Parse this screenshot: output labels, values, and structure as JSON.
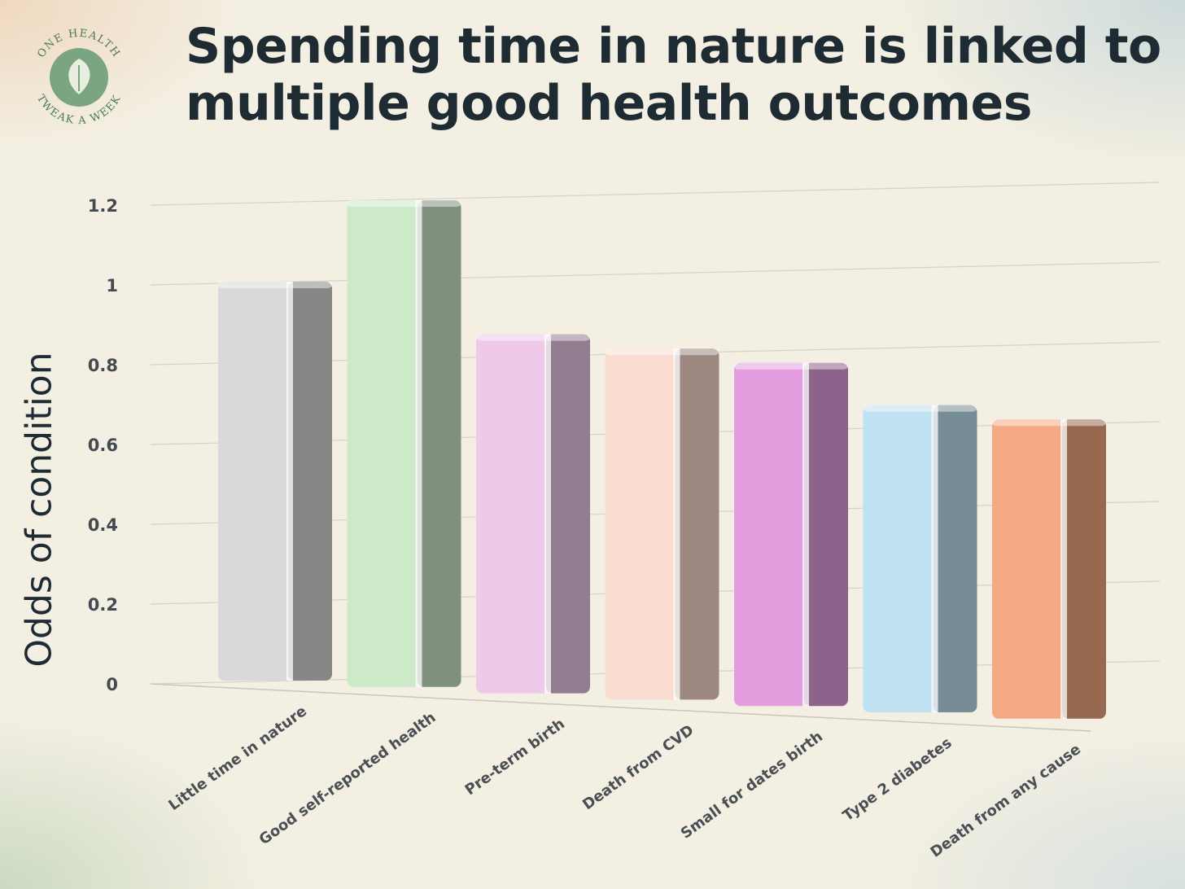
{
  "page": {
    "title": "Spending time in nature is linked to multiple good health outcomes",
    "logo": {
      "text_top": "ONE HEALTH",
      "text_bottom": "TWEAK A WEEK",
      "icon": "leaf-drop-icon"
    }
  },
  "chart_data": {
    "type": "bar",
    "title": "Spending time in nature is linked to multiple good health outcomes",
    "xlabel": "",
    "ylabel": "Odds of condition",
    "ylim": [
      0,
      1.2
    ],
    "yticks": [
      "0",
      "0.2",
      "0.4",
      "0.6",
      "0.8",
      "1",
      "1.2"
    ],
    "categories": [
      "Little time in nature",
      "Good self-reported health",
      "Pre-term birth",
      "Death from CVD",
      "Small for dates birth",
      "Type 2 diabetes",
      "Death from any cause"
    ],
    "values": [
      1.0,
      1.22,
      0.9,
      0.88,
      0.86,
      0.77,
      0.75
    ],
    "colors": [
      "#d9d9dc",
      "#cdeac8",
      "#efc9ea",
      "#fbdcd0",
      "#e49ee0",
      "#bfe2f3",
      "#f5a983"
    ],
    "grid": true,
    "legend": "none"
  }
}
